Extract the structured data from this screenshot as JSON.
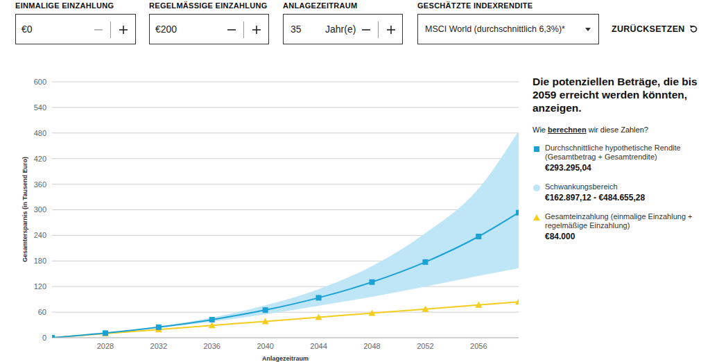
{
  "controls": [
    {
      "label": "EINMALIGE EINZAHLUNG",
      "value": "€0"
    },
    {
      "label": "REGELMÄSSIGE EINZAHLUNG",
      "value": "€200"
    },
    {
      "label": "ANLAGEZEITRAUM",
      "value": "35",
      "unit": "Jahr(e)"
    },
    {
      "label": "GESCHÄTZTE INDEXRENDITE",
      "value": "MSCI World (durchschnittlich 6,3%)*"
    }
  ],
  "reset": "ZURÜCKSETZEN",
  "panel": {
    "heading": "Die potenziellen Beträge, die bis 2059 erreicht werden könnten, anzeigen.",
    "help": {
      "before": "Wie ",
      "link": "berechnen",
      "after": " wir diese Zahlen?"
    }
  },
  "chart_data": {
    "type": "line",
    "x_label": "Anlagezeitraum",
    "y_label": "Gesamtersparnis (in Tausend Euro)",
    "x": [
      2024,
      2028,
      2032,
      2036,
      2040,
      2044,
      2048,
      2052,
      2056,
      2059
    ],
    "series": [
      {
        "name": "Durchschnittliche hypothetische Rendite (Gesamtbetrag + Gesamtrendite)",
        "type": "line",
        "color": "#1ba1d4",
        "marker": "square",
        "values": [
          0,
          10.84,
          24.67,
          42.34,
          64.9,
          93.71,
          130.49,
          177.45,
          237.4,
          293.29504
        ],
        "total_label": "€293.295,04"
      },
      {
        "name": "Schwankungsbereich",
        "type": "area",
        "color": "#bfe6f6",
        "marker": "circle",
        "low": [
          0,
          10.3,
          22.8,
          37.5,
          55,
          75,
          96,
          120,
          145,
          162.89712
        ],
        "high": [
          0,
          11.4,
          26.5,
          47,
          76,
          114,
          168,
          245,
          350,
          484.65528
        ],
        "total_label": "€162.897,12 - €484.655,28"
      },
      {
        "name": "Gesamteinzahlung (einmalige Einzahlung + regelmäßige Einzahlung)",
        "type": "line",
        "color": "#f5cd1c",
        "marker": "triangle",
        "values": [
          0,
          9.6,
          19.2,
          28.8,
          38.4,
          48,
          57.6,
          67.2,
          76.8,
          84
        ],
        "total_label": "€84.000"
      }
    ],
    "xlim": [
      2024,
      2059
    ],
    "xticks": [
      2028,
      2032,
      2036,
      2040,
      2044,
      2048,
      2052,
      2056
    ],
    "ylim": [
      0,
      600
    ],
    "yticks": [
      0,
      60,
      120,
      180,
      240,
      300,
      360,
      420,
      480,
      540,
      600
    ],
    "grid": true
  }
}
